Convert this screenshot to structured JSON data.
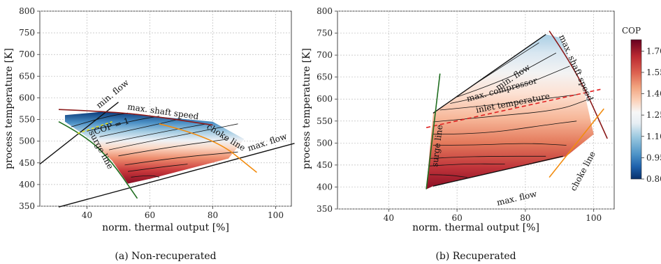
{
  "chart_data": [
    {
      "type": "contour",
      "caption": "(a) Non-recuperated",
      "xlabel": "norm. thermal output [%]",
      "ylabel": "process temperature [K]",
      "xlim": [
        25,
        105
      ],
      "ylim": [
        350,
        800
      ],
      "xticks": [
        40,
        60,
        80,
        100
      ],
      "yticks": [
        350,
        400,
        450,
        500,
        550,
        600,
        650,
        700,
        750,
        800
      ],
      "grid": true,
      "annotations": [
        "min. flow",
        "max. shaft speed",
        "COP = 1",
        "choke line",
        "max. flow",
        "surge line"
      ],
      "boundaries": {
        "min_flow": [
          [
            25,
            447
          ],
          [
            50,
            590
          ]
        ],
        "max_shaft_speed": [
          [
            31,
            573
          ],
          [
            48,
            568
          ],
          [
            62,
            557
          ],
          [
            80,
            537
          ]
        ],
        "max_flow": [
          [
            31,
            348
          ],
          [
            106,
            495
          ]
        ],
        "surge_line": [
          [
            31,
            545
          ],
          [
            40,
            510
          ],
          [
            48,
            452
          ],
          [
            56,
            368
          ]
        ],
        "choke_line": [
          [
            63,
            540
          ],
          [
            80,
            510
          ],
          [
            94,
            428
          ]
        ],
        "cop_1": [
          [
            37,
            518
          ],
          [
            48,
            545
          ]
        ]
      },
      "region": [
        [
          33,
          560
        ],
        [
          45,
          568
        ],
        [
          62,
          557
        ],
        [
          80,
          545
        ],
        [
          90,
          505
        ],
        [
          85,
          460
        ],
        [
          60,
          413
        ],
        [
          53,
          402
        ],
        [
          48,
          455
        ],
        [
          40,
          510
        ],
        [
          33,
          545
        ]
      ],
      "contours": [
        [
          [
            35,
            533
          ],
          [
            45,
            555
          ],
          [
            53,
            565
          ]
        ],
        [
          [
            40,
            523
          ],
          [
            55,
            548
          ],
          [
            63,
            558
          ]
        ],
        [
          [
            44,
            510
          ],
          [
            60,
            535
          ],
          [
            70,
            552
          ]
        ],
        [
          [
            46,
            495
          ],
          [
            63,
            520
          ],
          [
            78,
            540
          ]
        ],
        [
          [
            47,
            480
          ],
          [
            60,
            500
          ],
          [
            80,
            528
          ],
          [
            88,
            540
          ]
        ],
        [
          [
            50,
            466
          ],
          [
            65,
            485
          ],
          [
            85,
            505
          ]
        ],
        [
          [
            52,
            445
          ],
          [
            68,
            462
          ],
          [
            88,
            475
          ]
        ],
        [
          [
            53,
            430
          ],
          [
            63,
            440
          ],
          [
            72,
            447
          ]
        ],
        [
          [
            54,
            417
          ],
          [
            60,
            422
          ],
          [
            63,
            417
          ]
        ]
      ]
    },
    {
      "type": "contour",
      "caption": "(b) Recuperated",
      "xlabel": "norm. thermal output [%]",
      "ylabel": "process temperature [K]",
      "xlim": [
        25,
        106
      ],
      "ylim": [
        350,
        800
      ],
      "xticks": [
        40,
        60,
        80,
        100
      ],
      "yticks": [
        350,
        400,
        450,
        500,
        550,
        600,
        650,
        700,
        750,
        800
      ],
      "grid": true,
      "annotations": [
        "min. flow",
        "max. shaft speed",
        "max. compressor",
        "inlet temperature",
        "surge line",
        "max. flow",
        "choke line"
      ],
      "boundaries": {
        "min_flow": [
          [
            53,
            568
          ],
          [
            86,
            747
          ]
        ],
        "max_shaft_speed": [
          [
            87,
            755
          ],
          [
            95,
            665
          ],
          [
            104,
            510
          ]
        ],
        "max_compressor_inlet_temp": [
          [
            51,
            535
          ],
          [
            102,
            622
          ]
        ],
        "surge_line": [
          [
            51,
            395
          ],
          [
            55,
            658
          ]
        ],
        "max_flow": [
          [
            53,
            402
          ],
          [
            91,
            470
          ]
        ],
        "choke_line": [
          [
            87,
            422
          ],
          [
            103,
            578
          ]
        ]
      },
      "region": [
        [
          53,
          568
        ],
        [
          86,
          747
        ],
        [
          90,
          740
        ],
        [
          97,
          625
        ],
        [
          100,
          520
        ],
        [
          92,
          470
        ],
        [
          53,
          402
        ],
        [
          51,
          395
        ]
      ],
      "contours": [
        [
          [
            64,
            628
          ],
          [
            75,
            683
          ],
          [
            84,
            728
          ]
        ],
        [
          [
            60,
            605
          ],
          [
            75,
            645
          ],
          [
            89,
            705
          ]
        ],
        [
          [
            58,
            590
          ],
          [
            75,
            617
          ],
          [
            93,
            675
          ]
        ],
        [
          [
            55,
            575
          ],
          [
            75,
            590
          ],
          [
            95,
            610
          ]
        ],
        [
          [
            53,
            548
          ],
          [
            70,
            560
          ],
          [
            90,
            575
          ],
          [
            98,
            598
          ]
        ],
        [
          [
            53,
            520
          ],
          [
            67,
            520
          ],
          [
            85,
            540
          ],
          [
            95,
            550
          ]
        ],
        [
          [
            53,
            495
          ],
          [
            65,
            495
          ],
          [
            80,
            500
          ],
          [
            92,
            495
          ]
        ],
        [
          [
            52,
            465
          ],
          [
            60,
            468
          ],
          [
            70,
            470
          ],
          [
            86,
            470
          ]
        ],
        [
          [
            52,
            448
          ],
          [
            62,
            453
          ],
          [
            74,
            452
          ]
        ],
        [
          [
            52,
            428
          ],
          [
            57,
            428
          ],
          [
            63,
            422
          ]
        ]
      ]
    }
  ],
  "colorbar": {
    "label": "COP",
    "ticks": [
      "1.70",
      "1.55",
      "1.40",
      "1.25",
      "1.10",
      "0.95",
      "0.80"
    ],
    "min": 0.8,
    "max": 1.78,
    "colors": [
      "#08306b",
      "#1e62ad",
      "#4f95c8",
      "#9ac8e0",
      "#e7eef4",
      "#f7f7f7",
      "#fbd3bc",
      "#f2a47f",
      "#dd6351",
      "#bb2a32",
      "#8b0d24",
      "#67001f"
    ]
  }
}
